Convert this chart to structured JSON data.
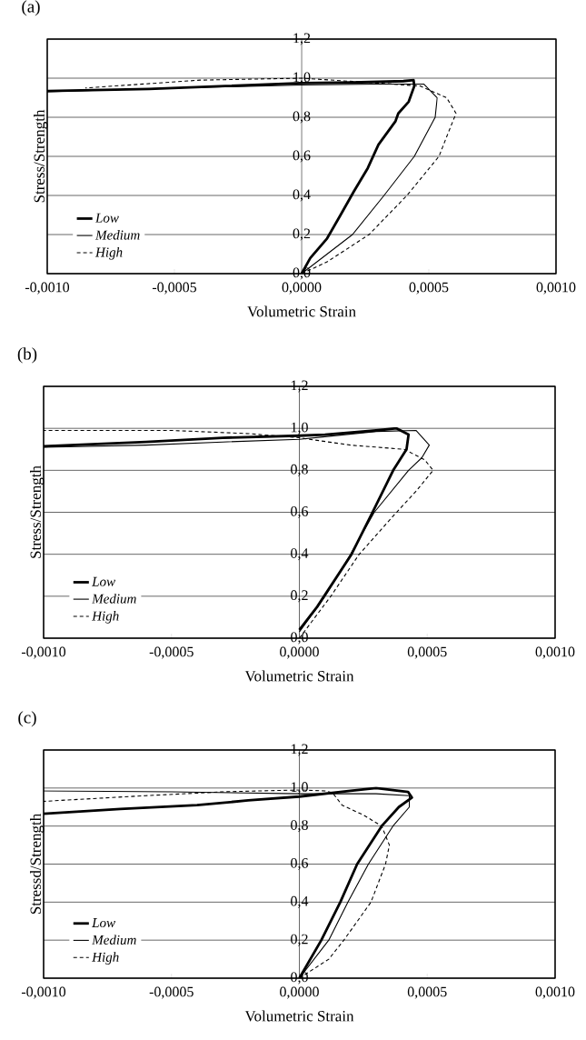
{
  "chart_data": [
    {
      "type": "line",
      "title": "(a)",
      "xlabel": "Volumetric Strain",
      "ylabel": "Stress/Strength",
      "xlim": [
        -0.001,
        0.001
      ],
      "ylim": [
        0,
        1.2
      ],
      "xticks": [
        {
          "value": -0.001,
          "label": "-0,0010"
        },
        {
          "value": -0.0005,
          "label": "-0,0005"
        },
        {
          "value": 0,
          "label": "0,0000"
        },
        {
          "value": 0.0005,
          "label": "0,0005"
        },
        {
          "value": 0.001,
          "label": "0,0010"
        }
      ],
      "yticks": [
        {
          "value": 0,
          "label": "0,0"
        },
        {
          "value": 0.2,
          "label": "0,2"
        },
        {
          "value": 0.4,
          "label": "0,4"
        },
        {
          "value": 0.6,
          "label": "0,6"
        },
        {
          "value": 0.8,
          "label": "0,8"
        },
        {
          "value": 1.0,
          "label": "1,0"
        },
        {
          "value": 1.2,
          "label": "1,2"
        }
      ],
      "grid": "y",
      "legend": "bottom left",
      "marker": "none",
      "series": [
        {
          "name": "Low",
          "color": "#000000",
          "line_style": "solid",
          "x": [
            0,
            3.4e-05,
            0.0001,
            0.000153,
            0.000205,
            0.00026,
            0.000302,
            0.000369,
            0.00038,
            0.000421,
            0.000443,
            0.00044,
            0.0004,
            0.0002,
            0,
            -0.0003,
            -0.0006,
            -0.001
          ],
          "values": [
            0,
            0.08,
            0.18,
            0.3,
            0.42,
            0.54,
            0.66,
            0.78,
            0.82,
            0.88,
            0.96,
            0.99,
            0.985,
            0.978,
            0.975,
            0.96,
            0.945,
            0.934
          ]
        },
        {
          "name": "Medium",
          "color": "#000000",
          "line_style": "solid",
          "x": [
            0,
            0.0001,
            0.0002,
            0.000324,
            0.000443,
            0.000525,
            0.000533,
            0.00048,
            0.0003,
            0,
            -0.0005,
            -0.001
          ],
          "values": [
            0,
            0.1,
            0.2,
            0.4,
            0.6,
            0.8,
            0.9,
            0.97,
            0.97,
            0.965,
            0.95,
            0.93
          ]
        },
        {
          "name": "High",
          "color": "#000000",
          "line_style": "dashed",
          "x": [
            0,
            0.0001,
            0.000265,
            0.000414,
            0.00054,
            0.00057,
            0.000607,
            0.00057,
            0.000466,
            0.0003,
            0,
            -0.0004,
            -0.00085
          ],
          "values": [
            0,
            0.06,
            0.2,
            0.4,
            0.6,
            0.7,
            0.82,
            0.9,
            0.96,
            0.975,
            1.0,
            0.99,
            0.95
          ]
        }
      ]
    },
    {
      "type": "line",
      "title": "(b)",
      "xlabel": "Volumetric Strain",
      "ylabel": "Stress/Strength",
      "xlim": [
        -0.001,
        0.001
      ],
      "ylim": [
        0,
        1.2
      ],
      "xticks": [
        {
          "value": -0.001,
          "label": "-0,0010"
        },
        {
          "value": -0.0005,
          "label": "-0,0005"
        },
        {
          "value": 0,
          "label": "0,0000"
        },
        {
          "value": 0.0005,
          "label": "0,0005"
        },
        {
          "value": 0.001,
          "label": "0,0010"
        }
      ],
      "yticks": [
        {
          "value": 0,
          "label": "0,0"
        },
        {
          "value": 0.2,
          "label": "0,2"
        },
        {
          "value": 0.4,
          "label": "0,4"
        },
        {
          "value": 0.6,
          "label": "0,6"
        },
        {
          "value": 0.8,
          "label": "0,8"
        },
        {
          "value": 1.0,
          "label": "1,0"
        },
        {
          "value": 1.2,
          "label": "1,2"
        }
      ],
      "grid": "y",
      "legend": "bottom left",
      "marker": "none",
      "series": [
        {
          "name": "Low",
          "color": "#000000",
          "line_style": "solid",
          "x": [
            0,
            7e-05,
            0.000204,
            0.000286,
            0.000367,
            0.000419,
            0.000427,
            0.00038,
            0.0003,
            0.0001,
            0,
            -0.0003,
            -0.0006,
            -0.001
          ],
          "values": [
            0.04,
            0.15,
            0.4,
            0.6,
            0.8,
            0.9,
            0.97,
            1.0,
            0.99,
            0.97,
            0.965,
            0.955,
            0.935,
            0.915
          ]
        },
        {
          "name": "Medium",
          "color": "#000000",
          "line_style": "solid",
          "x": [
            0,
            0.0001,
            0.0002,
            0.000293,
            0.000427,
            0.000479,
            0.000508,
            0.000456,
            0.0003,
            0.0001,
            0,
            -0.0003,
            -0.0006,
            -0.001
          ],
          "values": [
            0.03,
            0.2,
            0.4,
            0.6,
            0.8,
            0.86,
            0.92,
            0.99,
            0.985,
            0.96,
            0.948,
            0.935,
            0.92,
            0.91
          ]
        },
        {
          "name": "High",
          "color": "#000000",
          "line_style": "dashed",
          "x": [
            0,
            0.000123,
            0.000234,
            0.00038,
            0.000456,
            0.000523,
            0.00049,
            0.00041,
            0.0002,
            0,
            -0.0002,
            -0.0005,
            -0.001
          ],
          "values": [
            0,
            0.2,
            0.4,
            0.6,
            0.7,
            0.8,
            0.85,
            0.9,
            0.92,
            0.955,
            0.975,
            0.99,
            0.99
          ]
        }
      ]
    },
    {
      "type": "line",
      "title": "(c)",
      "xlabel": "Volumetric Strain",
      "ylabel": "Stressd/Strength",
      "xlim": [
        -0.001,
        0.001
      ],
      "ylim": [
        0,
        1.2
      ],
      "xticks": [
        {
          "value": -0.001,
          "label": "-0,0010"
        },
        {
          "value": -0.0005,
          "label": "-0,0005"
        },
        {
          "value": 0,
          "label": "0,0000"
        },
        {
          "value": 0.0005,
          "label": "0,0005"
        },
        {
          "value": 0.001,
          "label": "0,0010"
        }
      ],
      "yticks": [
        {
          "value": 0,
          "label": "0,0"
        },
        {
          "value": 0.2,
          "label": "0,2"
        },
        {
          "value": 0.4,
          "label": "0,4"
        },
        {
          "value": 0.6,
          "label": "0,6"
        },
        {
          "value": 0.8,
          "label": "0,8"
        },
        {
          "value": 1.0,
          "label": "1,0"
        },
        {
          "value": 1.2,
          "label": "1,2"
        }
      ],
      "grid": "y",
      "legend": "bottom left",
      "marker": "none",
      "series": [
        {
          "name": "Low",
          "color": "#000000",
          "line_style": "solid",
          "x": [
            0,
            8.6e-05,
            0.00016,
            0.000226,
            0.000322,
            0.000389,
            0.00044,
            0.000425,
            0.0003,
            0.0002,
            0,
            -0.0002,
            -0.0004,
            -0.0007,
            -0.001
          ],
          "values": [
            0,
            0.2,
            0.4,
            0.6,
            0.8,
            0.9,
            0.95,
            0.98,
            1.0,
            0.985,
            0.955,
            0.935,
            0.91,
            0.89,
            0.865
          ]
        },
        {
          "name": "Medium",
          "color": "#000000",
          "line_style": "solid",
          "x": [
            0,
            0.000115,
            0.00019,
            0.00027,
            0.000366,
            0.00043,
            0.00043,
            0.0003,
            0,
            -0.0005,
            -0.001
          ],
          "values": [
            0,
            0.2,
            0.4,
            0.6,
            0.8,
            0.9,
            0.96,
            0.97,
            0.97,
            0.98,
            0.985
          ]
        },
        {
          "name": "High",
          "color": "#000000",
          "line_style": "dashed",
          "x": [
            0,
            0.000115,
            0.000174,
            0.00028,
            0.000337,
            0.000352,
            0.000322,
            0.000248,
            0.000167,
            0.00013,
            0.0001,
            0,
            -0.0003,
            -0.0006,
            -0.001
          ],
          "values": [
            0,
            0.1,
            0.2,
            0.4,
            0.6,
            0.7,
            0.8,
            0.86,
            0.91,
            0.975,
            0.985,
            0.99,
            0.98,
            0.96,
            0.93
          ]
        }
      ]
    }
  ]
}
